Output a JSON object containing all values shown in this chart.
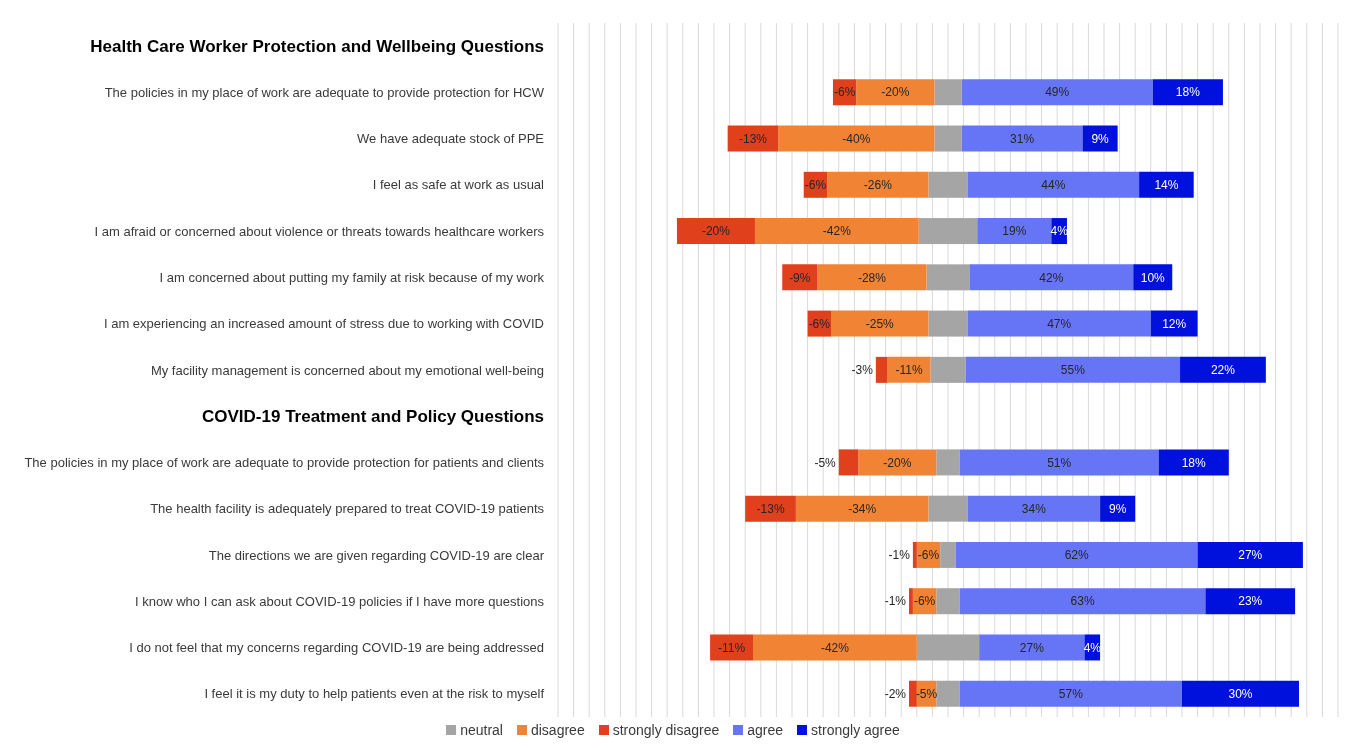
{
  "chart_data": {
    "type": "bar",
    "orientation": "horizontal",
    "stacked": true,
    "categories": [
      "Health Care Worker Protection and Wellbeing Questions",
      "The policies in my place of work are adequate to provide protection for HCW",
      "We have adequate stock of PPE",
      "I feel as safe at work as usual",
      "I am afraid or concerned about violence or threats towards healthcare workers",
      "I am concerned about putting my family at risk because of my work",
      "I am experiencing an increased amount of stress due to working with COVID",
      "My facility management is concerned about my emotional well-being",
      "COVID-19 Treatment and Policy Questions",
      "The policies in my place of work are adequate to provide protection for patients and clients",
      "The health facility is adequately prepared to treat COVID-19 patients",
      "The directions we are given regarding COVID-19 are clear",
      "I know who I can ask about COVID-19 policies if I have more questions",
      "I do not feel that my concerns regarding COVID-19 are being addressed",
      "I feel it is my duty to help patients even at the risk to myself"
    ],
    "series": [
      {
        "name": "neutral",
        "color": "#a5a5a5",
        "values": [
          null,
          -3.5,
          -3.5,
          -5,
          -7.5,
          -5.5,
          -5,
          -4.5,
          null,
          -3,
          -5,
          -2,
          -3,
          -8,
          -3
        ]
      },
      {
        "name": "disagree",
        "color": "#f08434",
        "values": [
          null,
          -20,
          -40,
          -26,
          -42,
          -28,
          -25,
          -11,
          null,
          -20,
          -34,
          -6,
          -6,
          -42,
          -5
        ],
        "value_labels": [
          null,
          "-20%",
          "-40%",
          "-26%",
          "-42%",
          "-28%",
          "-25%",
          "-11%",
          null,
          "-20%",
          "-34%",
          "-6%",
          "-6%",
          "-42%",
          "-5%"
        ]
      },
      {
        "name": "strongly disagree",
        "color": "#e0401c",
        "values": [
          null,
          -6,
          -13,
          -6,
          -20,
          -9,
          -6,
          -3,
          null,
          -5,
          -13,
          -1,
          -1,
          -11,
          -2
        ],
        "value_labels": [
          null,
          "-6%",
          "-13%",
          "-6%",
          "-20%",
          "-9%",
          "-6%",
          "-3%",
          null,
          "-5%",
          "-13%",
          "-1%",
          "-1%",
          "-11%",
          "-2%"
        ]
      },
      {
        "color": "#a5a5a5",
        "values": [
          null,
          3.5,
          3.5,
          5,
          7.5,
          5.5,
          5,
          4.5,
          null,
          3,
          5,
          2,
          3,
          8,
          3
        ]
      },
      {
        "name": "agree",
        "color": "#6675f5",
        "values": [
          null,
          49,
          31,
          44,
          19,
          42,
          47,
          55,
          null,
          51,
          34,
          62,
          63,
          27,
          57
        ],
        "value_labels": [
          null,
          "49%",
          "31%",
          "44%",
          "19%",
          "42%",
          "47%",
          "55%",
          null,
          "51%",
          "34%",
          "62%",
          "63%",
          "27%",
          "57%"
        ]
      },
      {
        "name": "strongly agree",
        "color": "#0010dd",
        "values": [
          null,
          18,
          9,
          14,
          4,
          10,
          12,
          22,
          null,
          18,
          9,
          27,
          23,
          4,
          30
        ],
        "value_labels": [
          null,
          "18%",
          "9%",
          "14%",
          "4%",
          "10%",
          "12%",
          "22%",
          null,
          "18%",
          "9%",
          "27%",
          "23%",
          "4%",
          "30%"
        ]
      }
    ],
    "xlim": [
      -100,
      100
    ],
    "xticks": [
      {
        "value": -100,
        "label": null
      },
      {
        "value": -96,
        "label": null
      },
      {
        "value": -92,
        "label": null
      },
      {
        "value": -88,
        "label": null
      },
      {
        "value": -84,
        "label": null
      },
      {
        "value": -80,
        "label": null
      },
      {
        "value": -76,
        "label": null
      },
      {
        "value": -72,
        "label": null
      },
      {
        "value": -68,
        "label": null
      },
      {
        "value": -64,
        "label": null
      },
      {
        "value": -60,
        "label": null
      },
      {
        "value": -56,
        "label": null
      },
      {
        "value": -52,
        "label": null
      },
      {
        "value": -48,
        "label": null
      },
      {
        "value": -44,
        "label": null
      },
      {
        "value": -40,
        "label": null
      },
      {
        "value": -36,
        "label": null
      },
      {
        "value": -32,
        "label": null
      },
      {
        "value": -28,
        "label": null
      },
      {
        "value": -24,
        "label": null
      },
      {
        "value": -20,
        "label": null
      },
      {
        "value": -16,
        "label": null
      },
      {
        "value": -12,
        "label": null
      },
      {
        "value": -8,
        "label": null
      },
      {
        "value": -4,
        "label": null
      },
      {
        "value": 0,
        "label": null
      },
      {
        "value": 4,
        "label": null
      },
      {
        "value": 8,
        "label": null
      },
      {
        "value": 12,
        "label": null
      },
      {
        "value": 16,
        "label": null
      },
      {
        "value": 20,
        "label": null
      },
      {
        "value": 24,
        "label": null
      },
      {
        "value": 28,
        "label": null
      },
      {
        "value": 32,
        "label": null
      },
      {
        "value": 36,
        "label": null
      },
      {
        "value": 40,
        "label": null
      },
      {
        "value": 44,
        "label": null
      },
      {
        "value": 48,
        "label": null
      },
      {
        "value": 52,
        "label": null
      },
      {
        "value": 56,
        "label": null
      },
      {
        "value": 60,
        "label": null
      },
      {
        "value": 64,
        "label": null
      },
      {
        "value": 68,
        "label": null
      },
      {
        "value": 72,
        "label": null
      },
      {
        "value": 76,
        "label": null
      },
      {
        "value": 80,
        "label": null
      },
      {
        "value": 84,
        "label": null
      },
      {
        "value": 88,
        "label": null
      },
      {
        "value": 92,
        "label": null
      },
      {
        "value": 96,
        "label": null
      },
      {
        "value": 100,
        "label": null
      }
    ],
    "grid": "x",
    "tick_labels": "y",
    "legend": "bottom"
  }
}
